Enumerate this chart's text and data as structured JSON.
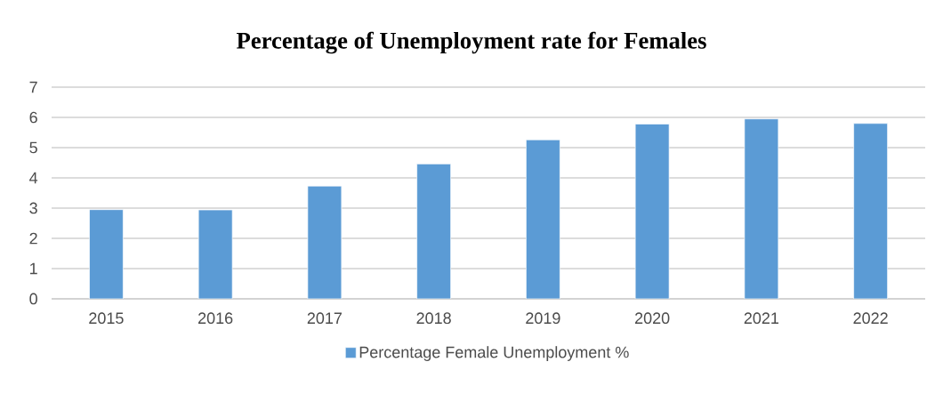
{
  "chart_data": {
    "type": "bar",
    "title": "Percentage of Unemployment rate for Females",
    "categories": [
      "2015",
      "2016",
      "2017",
      "2018",
      "2019",
      "2020",
      "2021",
      "2022"
    ],
    "series": [
      {
        "name": "Percentage Female Unemployment %",
        "color": "#5b9bd5",
        "values": [
          2.95,
          2.94,
          3.73,
          4.46,
          5.26,
          5.78,
          5.95,
          5.8
        ]
      }
    ],
    "ylim": [
      0,
      7
    ],
    "yticks": [
      0,
      1,
      2,
      3,
      4,
      5,
      6,
      7
    ],
    "grid": "y",
    "legend": "bottom"
  }
}
